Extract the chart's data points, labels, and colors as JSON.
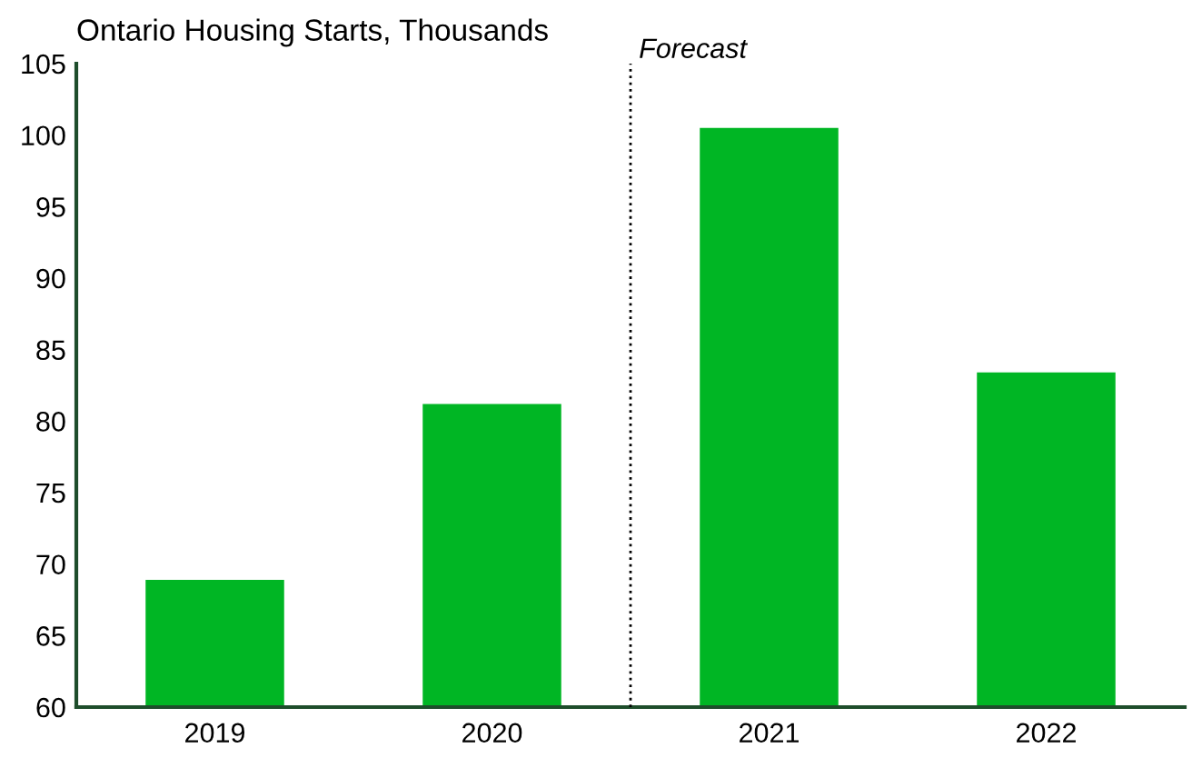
{
  "chart_data": {
    "type": "bar",
    "title": "Ontario Housing Starts, Thousands",
    "categories": [
      "2019",
      "2020",
      "2021",
      "2022"
    ],
    "values": [
      68.9,
      81.2,
      100.5,
      83.4
    ],
    "color": "#00b624",
    "ylim": [
      60,
      105
    ],
    "yticks": [
      60,
      65,
      70,
      75,
      80,
      85,
      90,
      95,
      100,
      105
    ],
    "grid": false,
    "annotations": [
      "Forecast"
    ]
  }
}
